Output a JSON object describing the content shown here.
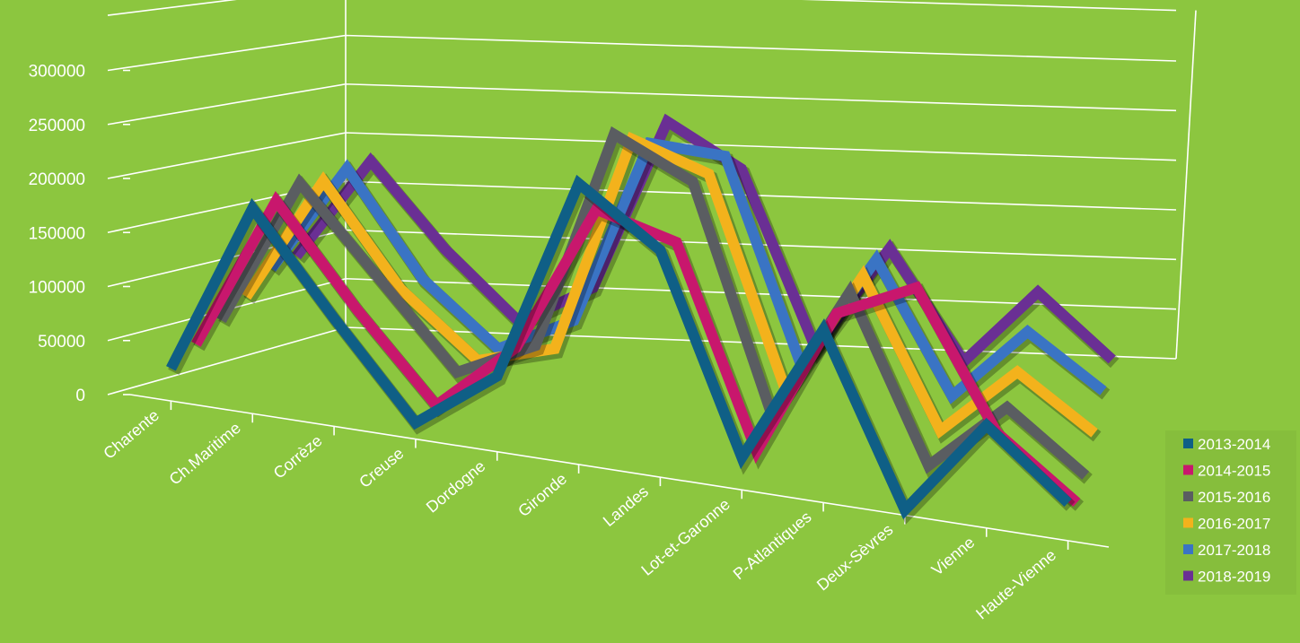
{
  "chart_data": {
    "type": "line",
    "title": "",
    "xlabel": "",
    "ylabel": "",
    "ylim": [
      0,
      300000
    ],
    "y_ticks": [
      "0",
      "50000",
      "100000",
      "150000",
      "200000",
      "250000",
      "300000"
    ],
    "categories": [
      "Charente",
      "Ch.Maritime",
      "Corrèze",
      "Creuse",
      "Dordogne",
      "Gironde",
      "Landes",
      "Lot-et-Garonne",
      "P-Atlantiques",
      "Deux-Sèvres",
      "Vienne",
      "Haute-Vienne"
    ],
    "series": [
      {
        "name": "2013-2014",
        "color": "#0f5f86",
        "values": [
          30000,
          190000,
          100000,
          15000,
          70000,
          260000,
          210000,
          30000,
          160000,
          5000,
          95000,
          35000
        ]
      },
      {
        "name": "2014-2015",
        "color": "#c8176d",
        "values": [
          45000,
          190000,
          100000,
          20000,
          85000,
          225000,
          205000,
          20000,
          160000,
          195000,
          70000,
          15000
        ]
      },
      {
        "name": "2015-2016",
        "color": "#5a5d61",
        "values": [
          60000,
          200000,
          120000,
          40000,
          75000,
          285000,
          250000,
          40000,
          165000,
          10000,
          75000,
          20000
        ]
      },
      {
        "name": "2016-2017",
        "color": "#f3b21c",
        "values": [
          75000,
          195000,
          100000,
          40000,
          60000,
          270000,
          245000,
          45000,
          165000,
          25000,
          90000,
          40000
        ]
      },
      {
        "name": "2017-2018",
        "color": "#3a74c4",
        "values": [
          95000,
          200000,
          100000,
          40000,
          75000,
          255000,
          250000,
          55000,
          165000,
          40000,
          110000,
          60000
        ]
      },
      {
        "name": "2018-2019",
        "color": "#6a2f94",
        "values": [
          100000,
          200000,
          120000,
          55000,
          95000,
          265000,
          225000,
          55000,
          160000,
          55000,
          130000,
          70000
        ]
      }
    ],
    "grid": true,
    "legend_position": "bottom-right"
  }
}
